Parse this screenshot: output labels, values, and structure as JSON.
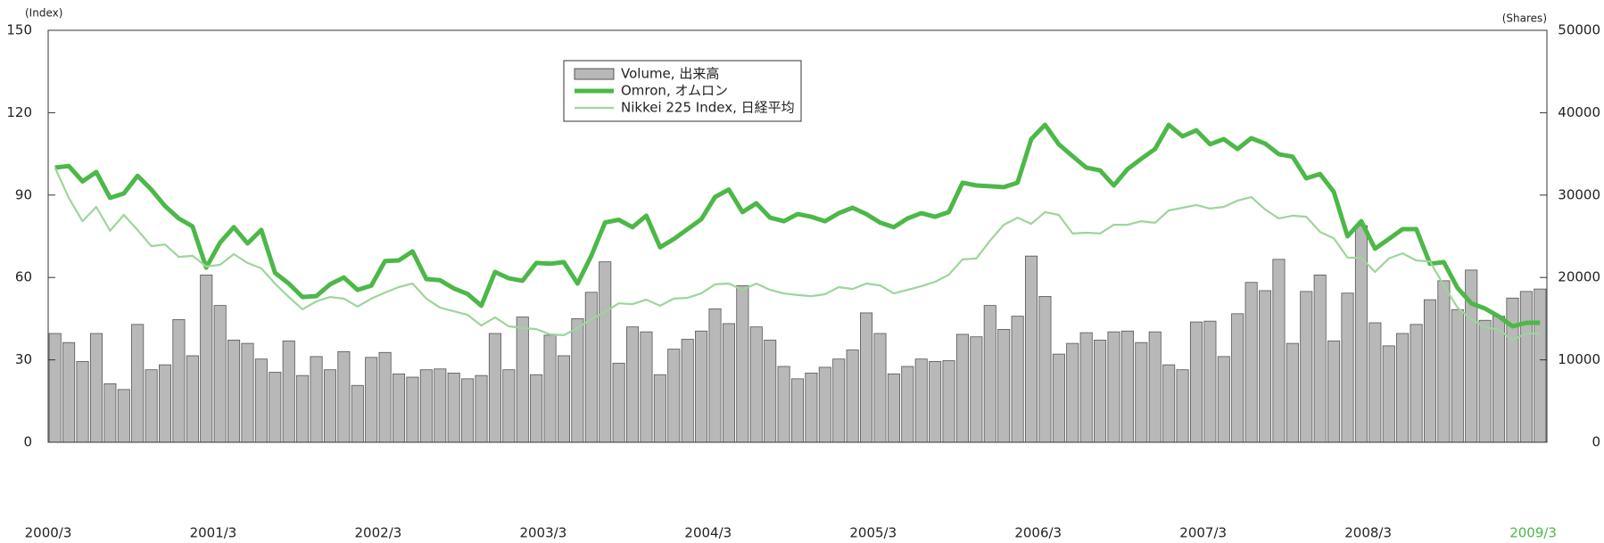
{
  "chart_data": {
    "type": "bar_line",
    "ylabel": "(Index)",
    "y2label": "(Shares)",
    "categories": [
      "2000/3",
      null,
      null,
      null,
      null,
      null,
      null,
      null,
      null,
      null,
      null,
      null,
      "2001/3",
      null,
      null,
      null,
      null,
      null,
      null,
      null,
      null,
      null,
      null,
      null,
      "2002/3",
      null,
      null,
      null,
      null,
      null,
      null,
      null,
      null,
      null,
      null,
      null,
      "2003/3",
      null,
      null,
      null,
      null,
      null,
      null,
      null,
      null,
      null,
      null,
      null,
      "2004/3",
      null,
      null,
      null,
      null,
      null,
      null,
      null,
      null,
      null,
      null,
      null,
      "2005/3",
      null,
      null,
      null,
      null,
      null,
      null,
      null,
      null,
      null,
      null,
      null,
      "2006/3",
      null,
      null,
      null,
      null,
      null,
      null,
      null,
      null,
      null,
      null,
      null,
      "2007/3",
      null,
      null,
      null,
      null,
      null,
      null,
      null,
      null,
      null,
      null,
      null,
      "2008/3",
      null,
      null,
      null,
      null,
      null,
      null,
      null,
      null,
      null,
      null,
      null,
      "2009/3"
    ],
    "last_label_color": "#4cb848",
    "series": [
      {
        "name": "Volume, 出来高",
        "kind": "bar",
        "axis": "y2",
        "color": "#b8b8b8",
        "values": [
          13200,
          12100,
          9800,
          13200,
          7100,
          6400,
          14300,
          8800,
          9400,
          14900,
          10500,
          20300,
          16600,
          12400,
          12000,
          10100,
          8500,
          12300,
          8100,
          10400,
          8800,
          11000,
          6900,
          10300,
          10900,
          8300,
          7900,
          8800,
          8900,
          8400,
          7700,
          8100,
          13200,
          8800,
          15200,
          8200,
          13000,
          10500,
          15000,
          18200,
          21900,
          9600,
          14000,
          13400,
          8200,
          11300,
          12500,
          13500,
          16200,
          14400,
          19000,
          14000,
          12400,
          9200,
          7700,
          8400,
          9100,
          10100,
          11200,
          15700,
          13200,
          8300,
          9200,
          10100,
          9800,
          9900,
          13100,
          12800,
          16600,
          13700,
          15300,
          22600,
          17700,
          10700,
          12000,
          13300,
          12400,
          13400,
          13500,
          12100,
          13400,
          9400,
          8800,
          14600,
          14700,
          10400,
          15600,
          19400,
          18400,
          22200,
          12000,
          18300,
          20300,
          12300,
          18100,
          26300,
          14500,
          11700,
          13200,
          14300,
          17300,
          19600,
          16100,
          20900,
          14800,
          15300,
          17500,
          18300,
          18600
        ]
      },
      {
        "name": "Omron, オムロン",
        "kind": "line",
        "color": "#4cb848",
        "width": 5,
        "values": [
          100,
          100.6,
          95,
          98.4,
          89,
          90.6,
          97,
          92,
          86,
          81.5,
          78.6,
          63.6,
          72.7,
          78.3,
          72.4,
          77.3,
          61.7,
          57.8,
          52.9,
          53.2,
          57.5,
          60,
          55.5,
          57,
          66,
          66.2,
          69.5,
          59.4,
          59,
          56,
          54,
          49.7,
          62,
          59.7,
          58.8,
          65.3,
          65,
          65.6,
          57.8,
          67.9,
          80,
          81,
          78.3,
          82.5,
          71,
          74,
          77.6,
          81.2,
          89.3,
          92,
          83.8,
          87,
          81.8,
          80.5,
          83.1,
          82.1,
          80.5,
          83.4,
          85.4,
          83.1,
          80,
          78.3,
          81.5,
          83.4,
          82.1,
          83.8,
          94.5,
          93.5,
          93.2,
          92.9,
          94.5,
          110.4,
          115.6,
          108.5,
          104.2,
          100,
          99,
          93.5,
          99.4,
          103.2,
          106.8,
          115.6,
          111.4,
          113.6,
          108.5,
          110.4,
          106.8,
          110.7,
          108.8,
          104.9,
          104,
          96.1,
          97.7,
          91.2,
          75,
          80.5,
          70.5,
          74,
          77.6,
          77.6,
          65,
          65.6,
          56.2,
          50.6,
          48.7,
          45.8,
          42.2,
          43.5,
          43.5
        ]
      },
      {
        "name": "Nikkei 225 Index, 日経平均",
        "kind": "line",
        "color": "#9ed59a",
        "width": 2.2,
        "values": [
          100,
          89,
          80.5,
          85.7,
          77,
          82.8,
          77.3,
          71.4,
          72,
          67.5,
          67.9,
          64,
          64.6,
          68.5,
          65.3,
          63.3,
          57.8,
          52.9,
          48.4,
          51.3,
          52.9,
          52.3,
          49.4,
          52.3,
          54.5,
          56.5,
          57.8,
          52.3,
          49,
          47.7,
          46.4,
          42.5,
          45.5,
          42.2,
          41.6,
          41.2,
          39.3,
          39,
          41.6,
          44.8,
          47.4,
          50.6,
          50.3,
          51.9,
          49.7,
          52.3,
          52.6,
          54.2,
          57.5,
          57.8,
          55.5,
          57.8,
          55.5,
          54.2,
          53.6,
          53.2,
          53.9,
          56.5,
          55.8,
          57.8,
          57.1,
          54.2,
          55.5,
          56.8,
          58.4,
          61,
          66.6,
          66.9,
          73.4,
          79.2,
          81.8,
          79.5,
          83.8,
          82.8,
          76,
          76.3,
          76,
          79.2,
          79.2,
          80.5,
          79.9,
          84.4,
          85.4,
          86.4,
          85.1,
          85.7,
          88,
          89.3,
          84.8,
          81.5,
          82.5,
          82.1,
          76.6,
          74.3,
          67.2,
          67.2,
          62,
          66.9,
          68.8,
          66.2,
          65.8,
          57.1,
          49,
          44.8,
          41.9,
          40.9,
          37.3,
          39.6,
          39.6
        ]
      }
    ],
    "ylim": [
      0,
      150
    ],
    "yticks": [
      0,
      30,
      60,
      90,
      120,
      150
    ],
    "y2lim": [
      0,
      50000
    ],
    "y2ticks": [
      0,
      10000,
      20000,
      30000,
      40000,
      50000
    ]
  }
}
